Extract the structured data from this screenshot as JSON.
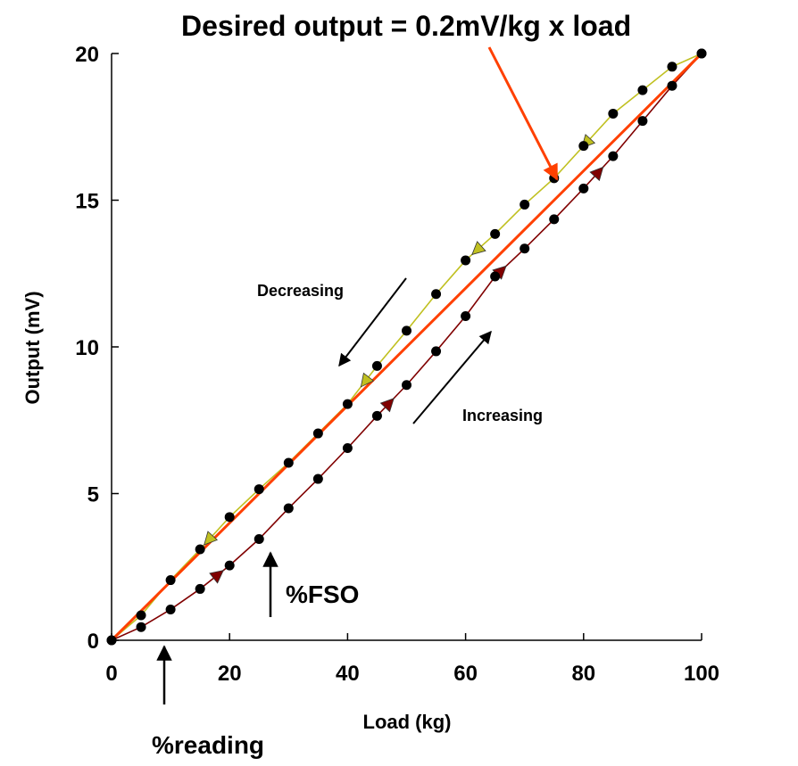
{
  "chart_data": {
    "type": "line",
    "title": "Desired output = 0.2mV/kg x load",
    "xlabel": "Load (kg)",
    "ylabel": "Output (mV)",
    "xlim": [
      0,
      100
    ],
    "ylim": [
      0,
      20
    ],
    "x_ticks": [
      "0",
      "20",
      "40",
      "60",
      "80",
      "100"
    ],
    "y_ticks": [
      "0",
      "5",
      "10",
      "15",
      "20"
    ],
    "grid": false,
    "colors": {
      "ideal": "#ff4000",
      "decreasing": "#c0c020",
      "increasing": "#800000",
      "marker": "#000000",
      "arrow_red": "#ff4000"
    },
    "series": [
      {
        "role": "decreasing",
        "x": [
          0,
          5,
          10,
          15,
          20,
          25,
          30,
          35,
          40,
          45,
          50,
          55,
          60,
          65,
          70,
          75,
          80,
          85,
          90,
          95,
          100
        ],
        "y": [
          0,
          0.85,
          2.05,
          3.1,
          4.2,
          5.15,
          6.05,
          7.05,
          8.05,
          9.35,
          10.55,
          11.8,
          12.95,
          13.85,
          14.85,
          15.75,
          16.85,
          17.95,
          18.75,
          19.55,
          20
        ]
      },
      {
        "role": "increasing",
        "x": [
          0,
          5,
          10,
          15,
          20,
          25,
          30,
          35,
          40,
          45,
          50,
          55,
          60,
          65,
          70,
          75,
          80,
          85,
          90,
          95,
          100
        ],
        "y": [
          0,
          0.45,
          1.05,
          1.75,
          2.55,
          3.45,
          4.5,
          5.5,
          6.55,
          7.65,
          8.7,
          9.85,
          11.05,
          12.4,
          13.35,
          14.35,
          15.4,
          16.5,
          17.7,
          18.9,
          20
        ]
      },
      {
        "role": "ideal",
        "x": [
          0,
          100
        ],
        "y": [
          0,
          20
        ]
      }
    ],
    "annotations": {
      "decreasing": "Decreasing",
      "increasing": "Increasing",
      "fso": "%FSO",
      "reading": "%reading"
    }
  }
}
